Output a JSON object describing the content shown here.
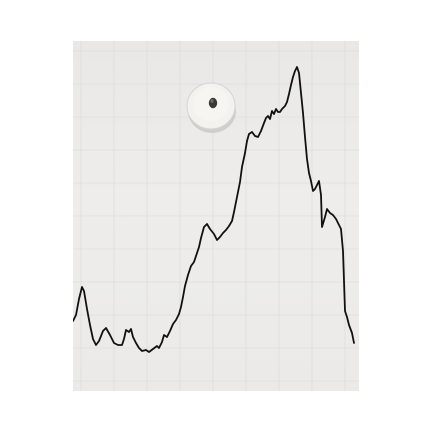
{
  "scene": {
    "description_colors": {
      "paper": "#ecebe9",
      "grid": "#d6d5d2",
      "ink": "#111111",
      "magnet_body": "#f2f1ee",
      "magnet_shadow": "#bdbbb6",
      "screw": "#3a3936"
    },
    "objects": [
      "graph-paper",
      "ink-line-drawing",
      "round-magnet"
    ]
  }
}
